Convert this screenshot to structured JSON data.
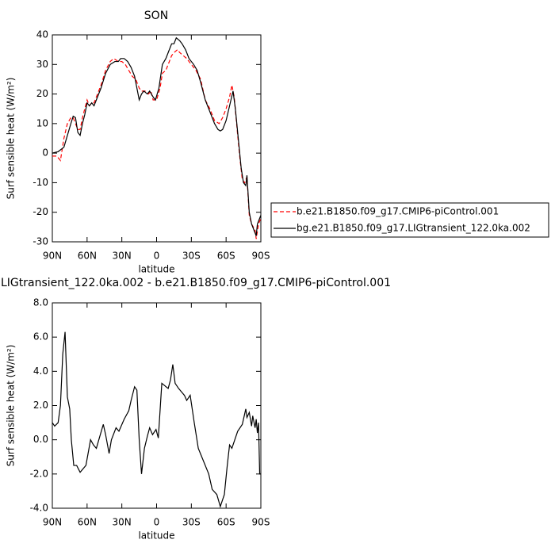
{
  "chart_data": [
    {
      "type": "line",
      "title": "SON",
      "xlabel": "latitude",
      "ylabel": "Surf sensible heat (W/m²)",
      "xlim": [
        90,
        -90
      ],
      "ylim": [
        -30,
        40
      ],
      "xticks": [
        {
          "value": 90,
          "label": "90N"
        },
        {
          "value": 60,
          "label": "60N"
        },
        {
          "value": 30,
          "label": "30N"
        },
        0,
        {
          "value": -30,
          "label": "30S"
        },
        {
          "value": -60,
          "label": "60S"
        },
        {
          "value": -90,
          "label": "90S"
        }
      ],
      "yticks": [
        -30,
        -20,
        -10,
        0,
        10,
        20,
        30,
        40
      ],
      "series": [
        {
          "name": "b.e21.B1850.f09_g17.CMIP6-piControl.001",
          "color": "#ff0000",
          "dash": true,
          "x": [
            90,
            86,
            83,
            80,
            77,
            74,
            72,
            70,
            68,
            66,
            64,
            62,
            60,
            58,
            56,
            54,
            52,
            48,
            44,
            40,
            37,
            33,
            30,
            27,
            24,
            21,
            18,
            15,
            13,
            10,
            7,
            5,
            3,
            0,
            -3,
            -5,
            -8,
            -10,
            -13,
            -15,
            -18,
            -20,
            -23,
            -26,
            -30,
            -34,
            -38,
            -42,
            -46,
            -50,
            -54,
            -57,
            -60,
            -63,
            -65,
            -67,
            -70,
            -72,
            -74,
            -76,
            -78,
            -80,
            -82,
            -85,
            -86,
            -88,
            -90
          ],
          "values": [
            -1,
            -1,
            -2.5,
            5,
            10,
            12,
            12,
            10,
            8,
            8,
            12,
            15,
            18,
            16,
            17,
            17,
            19,
            23,
            28,
            31,
            32,
            31,
            31,
            30,
            28,
            26,
            25,
            22,
            21,
            21,
            20,
            21,
            18,
            18,
            22,
            27,
            28,
            30,
            33,
            34,
            35,
            34,
            33,
            32,
            30,
            28,
            25,
            18,
            15,
            11,
            10,
            12,
            15,
            19,
            23,
            19,
            6,
            -2,
            -9,
            -10,
            -8,
            -21,
            -24,
            -26,
            -29,
            -24,
            -22
          ]
        },
        {
          "name": "bg.e21.B1850.f09_g17.LIGtransient_122.0ka.002",
          "color": "#000000",
          "dash": false,
          "x": [
            90,
            85,
            80,
            77,
            74,
            72,
            70,
            68,
            66,
            64,
            62,
            60,
            58,
            56,
            54,
            52,
            48,
            44,
            40,
            36,
            33,
            31,
            28,
            25,
            22,
            19,
            17,
            15,
            13,
            11,
            8,
            6,
            3,
            1,
            -2,
            -5,
            -8,
            -10,
            -13,
            -15,
            -17,
            -20,
            -22,
            -25,
            -28,
            -32,
            -35,
            -38,
            -42,
            -46,
            -50,
            -53,
            -55,
            -57,
            -60,
            -63,
            -66,
            -68,
            -71,
            -73,
            -75,
            -77,
            -78,
            -80,
            -82,
            -84,
            -86,
            -87,
            -89,
            -90
          ],
          "values": [
            0,
            0.5,
            2,
            6,
            10,
            12.5,
            12,
            7,
            6,
            10,
            13,
            17,
            16,
            17,
            16,
            18,
            22,
            27,
            30,
            31,
            31,
            32,
            32,
            31,
            29,
            26,
            22,
            18,
            20,
            21,
            20,
            21,
            19,
            18,
            22,
            30,
            32,
            34,
            37,
            37,
            39,
            38,
            37,
            35,
            32,
            30,
            28,
            24,
            18,
            14,
            10,
            8,
            7.5,
            8,
            11,
            16,
            21,
            15,
            3,
            -5,
            -10,
            -11,
            -7.5,
            -20,
            -24,
            -26,
            -28,
            -24,
            -22,
            -21
          ]
        }
      ]
    },
    {
      "type": "line",
      "title": "LIGtransient_122.0ka.002 - b.e21.B1850.f09_g17.CMIP6-piControl.001",
      "xlabel": "latitude",
      "ylabel": "Surf sensible heat (W/m²)",
      "xlim": [
        90,
        -90
      ],
      "ylim": [
        -4,
        8
      ],
      "xticks": [
        {
          "value": 90,
          "label": "90N"
        },
        {
          "value": 60,
          "label": "60N"
        },
        {
          "value": 30,
          "label": "30N"
        },
        0,
        {
          "value": -30,
          "label": "30S"
        },
        {
          "value": -60,
          "label": "60S"
        },
        {
          "value": -90,
          "label": "90S"
        }
      ],
      "yticks": [
        {
          "value": -4,
          "label": "-4.0"
        },
        {
          "value": -2,
          "label": "-2.0"
        },
        {
          "value": 0,
          "label": "0.0"
        },
        {
          "value": 2,
          "label": "2.0"
        },
        {
          "value": 4,
          "label": "4.0"
        },
        {
          "value": 6,
          "label": "6.0"
        },
        {
          "value": 8,
          "label": "8.0"
        }
      ],
      "series": [
        {
          "color": "#000000",
          "dash": false,
          "x": [
            90,
            88,
            85,
            83,
            81,
            79,
            77,
            75,
            73.6,
            71.5,
            69,
            66,
            61,
            57,
            54.5,
            52,
            49,
            46,
            44,
            41,
            39,
            35,
            32.5,
            28,
            24,
            22,
            19,
            17,
            15,
            13,
            10.5,
            8,
            6,
            3.5,
            0.5,
            -1.5,
            -4.5,
            -10,
            -12,
            -14,
            -16,
            -19,
            -21.5,
            -24,
            -26,
            -29,
            -32.5,
            -36,
            -39,
            -45,
            -48,
            -52,
            -55,
            -58.5,
            -61,
            -63,
            -65,
            -67,
            -70,
            -74,
            -77,
            -78,
            -80,
            -82,
            -83,
            -85,
            -86,
            -87,
            -88,
            -89,
            -90
          ],
          "values": [
            1.0,
            0.8,
            1.0,
            2,
            5,
            6.3,
            2.5,
            1.8,
            0,
            -1.5,
            -1.5,
            -1.9,
            -1.5,
            0,
            -0.3,
            -0.5,
            0.2,
            0.9,
            0.3,
            -0.8,
            0,
            0.7,
            0.5,
            1.2,
            1.7,
            2.3,
            3.1,
            2.9,
            0,
            -2.0,
            -0.5,
            0.2,
            0.7,
            0.3,
            0.6,
            0.1,
            3.3,
            3.0,
            3.5,
            4.4,
            3.3,
            3.0,
            2.8,
            2.6,
            2.3,
            2.6,
            1.0,
            -0.5,
            -1.0,
            -2.0,
            -2.9,
            -3.2,
            -3.9,
            -3.2,
            -1.5,
            -0.3,
            -0.5,
            -0.1,
            0.5,
            0.9,
            1.8,
            1.3,
            1.6,
            0.8,
            1.4,
            0.7,
            1.2,
            0.4,
            1.0,
            -2.0,
            -2.0
          ]
        }
      ]
    }
  ]
}
